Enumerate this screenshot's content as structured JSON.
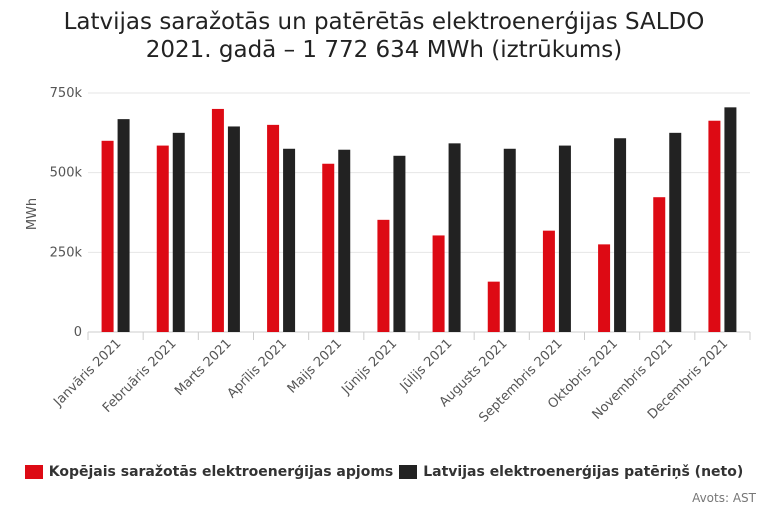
{
  "chart_data": {
    "type": "bar",
    "title_lines": [
      "Latvijas saražotās un patērētās elektroenerģijas SALDO",
      "2021. gadā – 1 772 634 MWh (iztrūkums)"
    ],
    "ylabel": "MWh",
    "ylim": [
      0,
      750000
    ],
    "yticks": [
      0,
      250000,
      500000,
      750000
    ],
    "ytick_labels": [
      "0",
      "250k",
      "500k",
      "750k"
    ],
    "grid": true,
    "legend_position": "bottom",
    "categories": [
      "Janvāris 2021",
      "Februāris 2021",
      "Marts 2021",
      "Aprīlis 2021",
      "Maijs 2021",
      "Jūnijs 2021",
      "Jūlijs 2021",
      "Augusts 2021",
      "Septembris 2021",
      "Oktobris 2021",
      "Novembris 2021",
      "Decembris 2021"
    ],
    "series": [
      {
        "name": "Kopējais saražotās elektroenerģijas apjoms",
        "color": "#dd0a14",
        "values": [
          600000,
          585000,
          700000,
          650000,
          528000,
          352000,
          303000,
          158000,
          318000,
          275000,
          423000,
          663000
        ]
      },
      {
        "name": "Latvijas elektroenerģijas patēriņš (neto)",
        "color": "#222222",
        "values": [
          668000,
          625000,
          645000,
          575000,
          572000,
          553000,
          592000,
          575000,
          585000,
          608000,
          625000,
          705000
        ]
      }
    ],
    "source": "Avots: AST"
  }
}
